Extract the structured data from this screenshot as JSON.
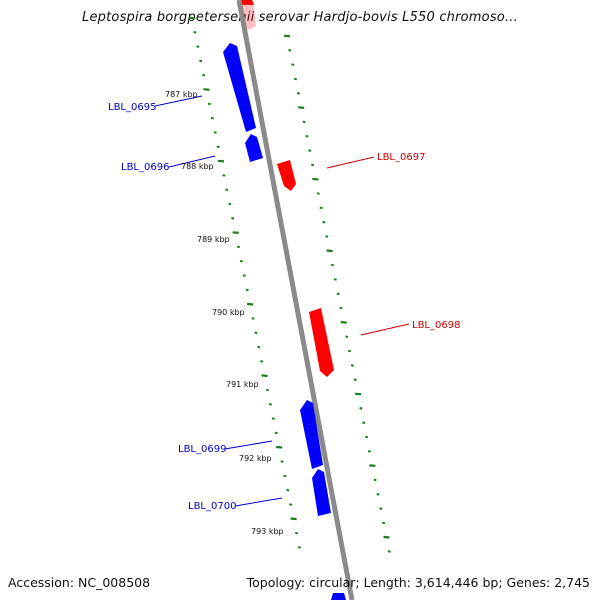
{
  "title": "Leptospira borgpetersenii serovar Hardjo-bovis L550 chromoso...",
  "footer": {
    "accession": "Accession: NC_008508",
    "summary": "Topology: circular; Length: 3,614,446 bp; Genes: 2,745"
  },
  "colors": {
    "backbone": "#8a8a8a",
    "minus_strand": "#0000ff",
    "plus_strand": "#ff0000",
    "tick": "#1a7f1a",
    "label_minus": "#0000cc",
    "label_plus": "#cc0000"
  },
  "scale_labels": [
    "787 kbp",
    "788 kbp",
    "789 kbp",
    "790 kbp",
    "791 kbp",
    "792 kbp",
    "793 kbp"
  ],
  "genes": [
    {
      "name": "LBL_0695",
      "strand": "minus"
    },
    {
      "name": "LBL_0696",
      "strand": "minus"
    },
    {
      "name": "LBL_0697",
      "strand": "plus"
    },
    {
      "name": "LBL_0698",
      "strand": "plus"
    },
    {
      "name": "LBL_0699",
      "strand": "minus"
    },
    {
      "name": "LBL_0700",
      "strand": "minus"
    }
  ]
}
